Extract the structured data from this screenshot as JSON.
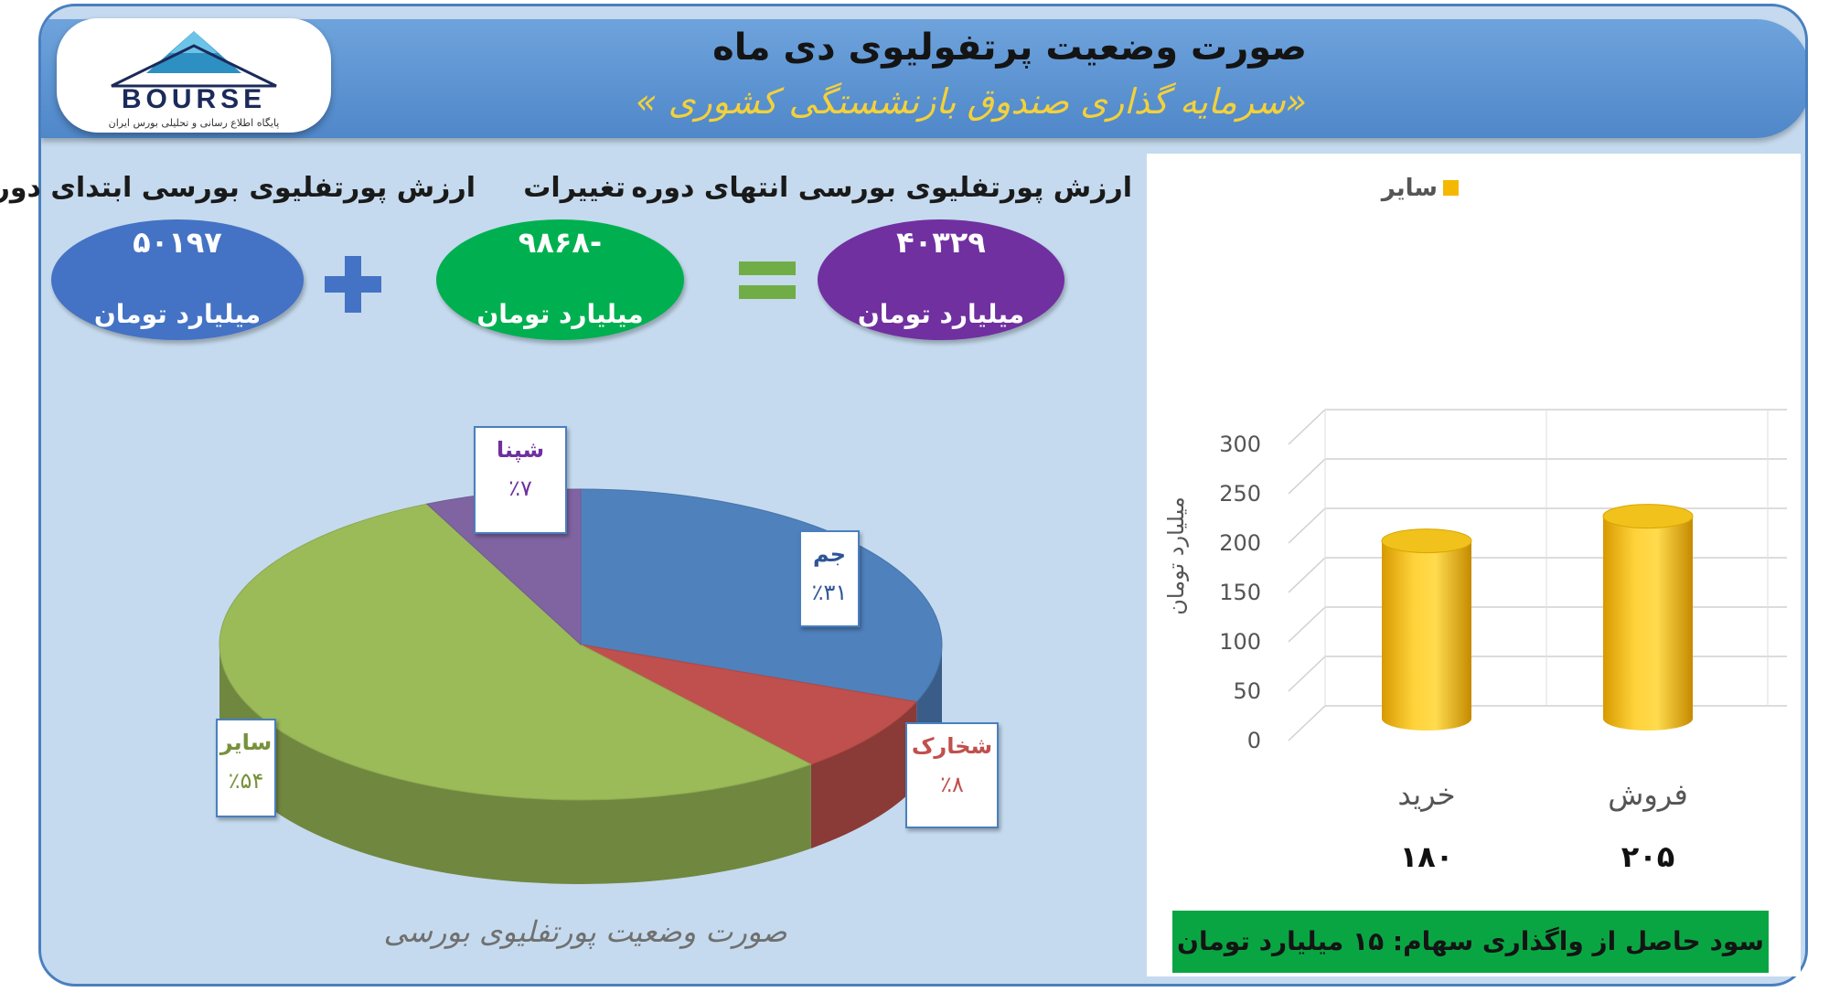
{
  "header": {
    "title": "صورت وضعیت پرتفولیوی دی ماه",
    "subtitle": "«سرمایه گذاری صندوق بازنشستگی کشوری »"
  },
  "logo": {
    "text": "BOURSE",
    "caption": "پایگاه اطلاع رسانی و تحلیلی بورس ایران"
  },
  "summary": {
    "start": {
      "label": "ارزش پورتفلیوی بورسی ابتدای دوره",
      "value": "۵۰۱۹۷",
      "unit": "میلیارد تومان",
      "color": "#4472c4"
    },
    "change": {
      "label": "تغییرات",
      "value": "-۹۸۶۸",
      "unit": "میلیارد تومان",
      "color": "#00b050"
    },
    "end": {
      "label": "ارزش پورتفلیوی بورسی انتهای دوره",
      "value": "۴۰۳۲۹",
      "unit": "میلیارد تومان",
      "color": "#7030a0"
    },
    "plus_color": "#4472c4",
    "equals_color": "#70ad47"
  },
  "chart_data": [
    {
      "type": "pie",
      "title": "صورت وضعیت پورتفلیوی بورسی",
      "slices": [
        {
          "name": "جم",
          "value": 31,
          "label": "٪۳۱",
          "color": "#4f81bd"
        },
        {
          "name": "شخارک",
          "value": 8,
          "label": "٪۸",
          "color": "#c0504d"
        },
        {
          "name": "سایر",
          "value": 54,
          "label": "٪۵۴",
          "color": "#9bbb59"
        },
        {
          "name": "شپنا",
          "value": 7,
          "label": "٪۷",
          "color": "#8064a2"
        }
      ]
    },
    {
      "type": "bar",
      "categories": [
        "خرید",
        "فروش"
      ],
      "category_values": [
        "۱۸۰",
        "۲۰۵"
      ],
      "series": [
        {
          "name": "سایر",
          "values": [
            180,
            205
          ],
          "color": "#f5b800"
        }
      ],
      "ylabel": "میلیارد تومان",
      "ylim": [
        0,
        300
      ],
      "yticks": [
        "0",
        "50",
        "100",
        "150",
        "200",
        "250",
        "300"
      ],
      "grid": true,
      "legend": "top"
    }
  ],
  "footer": {
    "text": "سود حاصل از واگذاری سهام: ۱۵ میلیارد تومان"
  }
}
